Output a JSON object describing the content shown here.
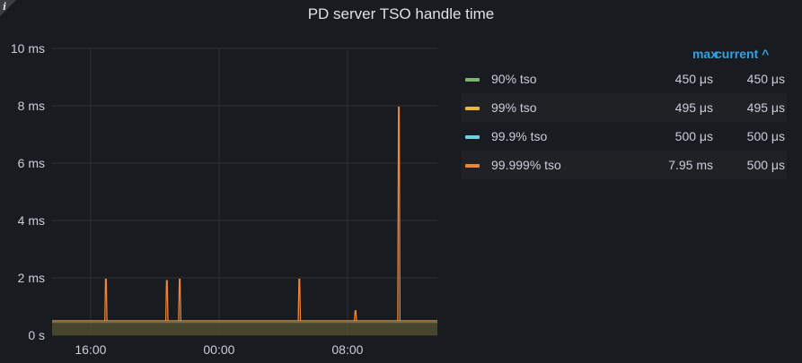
{
  "panel": {
    "title": "PD server TSO handle time",
    "info_icon": "i"
  },
  "legend": {
    "header_max": "max",
    "header_current": "current ^",
    "rows": [
      {
        "name": "90% tso",
        "color": "#7eb26d",
        "max": "450 μs",
        "current": "450 μs"
      },
      {
        "name": "99% tso",
        "color": "#eab839",
        "max": "495 μs",
        "current": "495 μs"
      },
      {
        "name": "99.9% tso",
        "color": "#6ed0e0",
        "max": "500 μs",
        "current": "500 μs"
      },
      {
        "name": "99.999% tso",
        "color": "#ef843c",
        "max": "7.95 ms",
        "current": "500 μs"
      }
    ]
  },
  "chart_data": {
    "type": "line",
    "y_ticks": [
      {
        "value": 0,
        "label": "0 s"
      },
      {
        "value": 2,
        "label": "2 ms"
      },
      {
        "value": 4,
        "label": "4 ms"
      },
      {
        "value": 6,
        "label": "6 ms"
      },
      {
        "value": 8,
        "label": "8 ms"
      },
      {
        "value": 10,
        "label": "10 ms"
      }
    ],
    "x_ticks": [
      {
        "value": 16,
        "label": "16:00"
      },
      {
        "value": 24,
        "label": "00:00"
      },
      {
        "value": 32,
        "label": "08:00"
      }
    ],
    "xlim": [
      13.6,
      37.6
    ],
    "ylim": [
      0,
      10
    ],
    "grid": true,
    "legend_position": "right",
    "series": [
      {
        "name": "90% tso",
        "color": "#7eb26d",
        "baseline": 0.45,
        "spikes": []
      },
      {
        "name": "99% tso",
        "color": "#eab839",
        "baseline": 0.495,
        "spikes": []
      },
      {
        "name": "99.9% tso",
        "color": "#6ed0e0",
        "baseline": 0.5,
        "spikes": []
      },
      {
        "name": "99.999% tso",
        "color": "#ef843c",
        "baseline": 0.5,
        "spikes": [
          {
            "x": 16.95,
            "y": 1.95
          },
          {
            "x": 20.75,
            "y": 1.9
          },
          {
            "x": 21.55,
            "y": 1.95
          },
          {
            "x": 29.0,
            "y": 1.95
          },
          {
            "x": 32.5,
            "y": 0.85
          },
          {
            "x": 35.2,
            "y": 7.95
          }
        ]
      }
    ]
  }
}
